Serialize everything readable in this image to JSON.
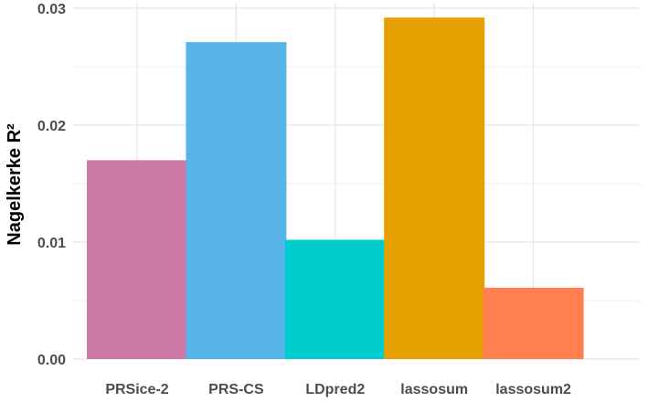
{
  "chart_data": {
    "type": "bar",
    "title": "",
    "xlabel": "",
    "ylabel": "Nagelkerke R²",
    "categories": [
      "PRSice-2",
      "PRS-CS",
      "LDpred2",
      "lassosum",
      "lassosum2"
    ],
    "values": [
      0.017,
      0.0271,
      0.0102,
      0.0292,
      0.0061
    ],
    "colors": [
      "#CC79A7",
      "#56B4E9",
      "#00CDCD",
      "#E69F00",
      "#FF7F50"
    ],
    "ylim": [
      0,
      0.03
    ],
    "yticks": [
      0,
      0.01,
      0.02,
      0.03
    ],
    "ytick_labels": [
      "0.00",
      "0.01",
      "0.02",
      "0.03"
    ],
    "grid": true,
    "legend": "none"
  }
}
